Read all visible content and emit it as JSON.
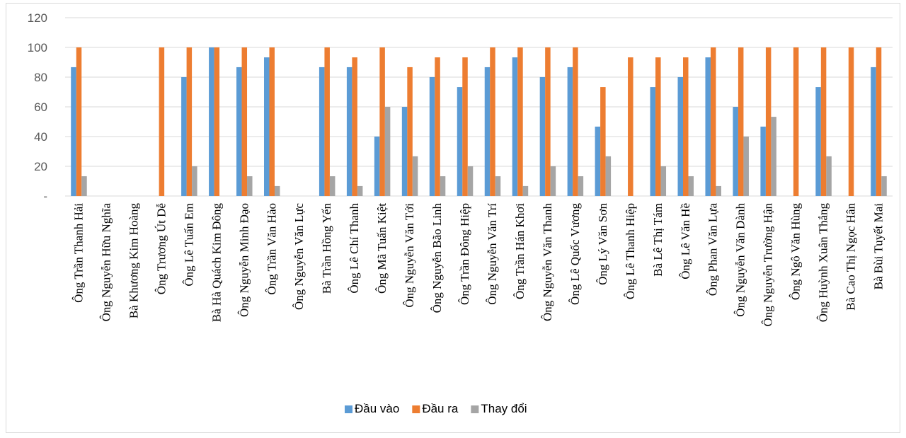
{
  "chart_data": {
    "type": "bar",
    "title": "",
    "xlabel": "",
    "ylabel": "",
    "ylim": [
      0,
      120
    ],
    "yticks": [
      0,
      20,
      40,
      60,
      80,
      100,
      120
    ],
    "ytick_labels": [
      "-",
      "20",
      "40",
      "60",
      "80",
      "100",
      "120"
    ],
    "grid": true,
    "legend_position": "bottom",
    "categories": [
      "Ông Trần Thanh Hải",
      "Ông Nguyễn Hữu Nghĩa",
      "Bà Khương Kim Hoàng",
      "Ông Trương Út Dễ",
      "Ông Lê Tuấn Em",
      "Bà Hà Quách Kim Đông",
      "Ông Nguyễn Minh Đạo",
      "Ông Trần Văn Hào",
      "Ông Nguyễn Văn Lực",
      "Bà Trần Hồng Yến",
      "Ông Lê Chí Thanh",
      "Ông Mã Tuấn Kiệt",
      "Ông Nguyễn Văn Tới",
      "Ông Nguyễn Bão Linh",
      "Ông Trần Đông Hiệp",
      "Ông Nguyễn Văn Trí",
      "Ông Trần Hán Khơi",
      "Ông Nguyễn Văn Thanh",
      "Ông Lê Quốc Vương",
      "Ông Lý Văn Sơn",
      "Ông Lê Thanh Hiệp",
      "Bà Lê Thị Tám",
      "Ông Lê Văn Hề",
      "Ông Phan Văn Lựa",
      "Ông Nguyễn Văn Dành",
      "Ông Nguyễn Trường Hận",
      "Ông Ngô Văn Hùng",
      "Ông Huỳnh Xuân Thắng",
      "Bà Cao Thị Ngọc Hân",
      "Bà Bùi Tuyết Mai"
    ],
    "series": [
      {
        "name": "Đầu vào",
        "color": "#5b9bd5",
        "values": [
          86.7,
          0,
          0,
          0,
          80,
          100,
          86.7,
          93.3,
          0,
          86.7,
          86.7,
          40,
          60,
          80,
          73.3,
          86.7,
          93.3,
          80,
          86.7,
          46.7,
          0,
          73.3,
          80,
          93.3,
          60,
          46.7,
          0,
          73.3,
          0,
          86.7
        ]
      },
      {
        "name": "Đầu ra",
        "color": "#ed7d31",
        "values": [
          100,
          0,
          0,
          100,
          100,
          100,
          100,
          100,
          0,
          100,
          93.3,
          100,
          86.7,
          93.3,
          93.3,
          100,
          100,
          100,
          100,
          73.3,
          93.3,
          93.3,
          93.3,
          100,
          100,
          100,
          100,
          100,
          100,
          100
        ]
      },
      {
        "name": "Thay đổi",
        "color": "#a5a5a5",
        "values": [
          13.3,
          0,
          0,
          0,
          20,
          0,
          13.3,
          6.7,
          0,
          13.3,
          6.7,
          60,
          26.7,
          13.3,
          20,
          13.3,
          6.7,
          20,
          13.3,
          26.7,
          0,
          20,
          13.3,
          6.7,
          40,
          53.3,
          0,
          26.7,
          0,
          13.3
        ]
      }
    ]
  }
}
